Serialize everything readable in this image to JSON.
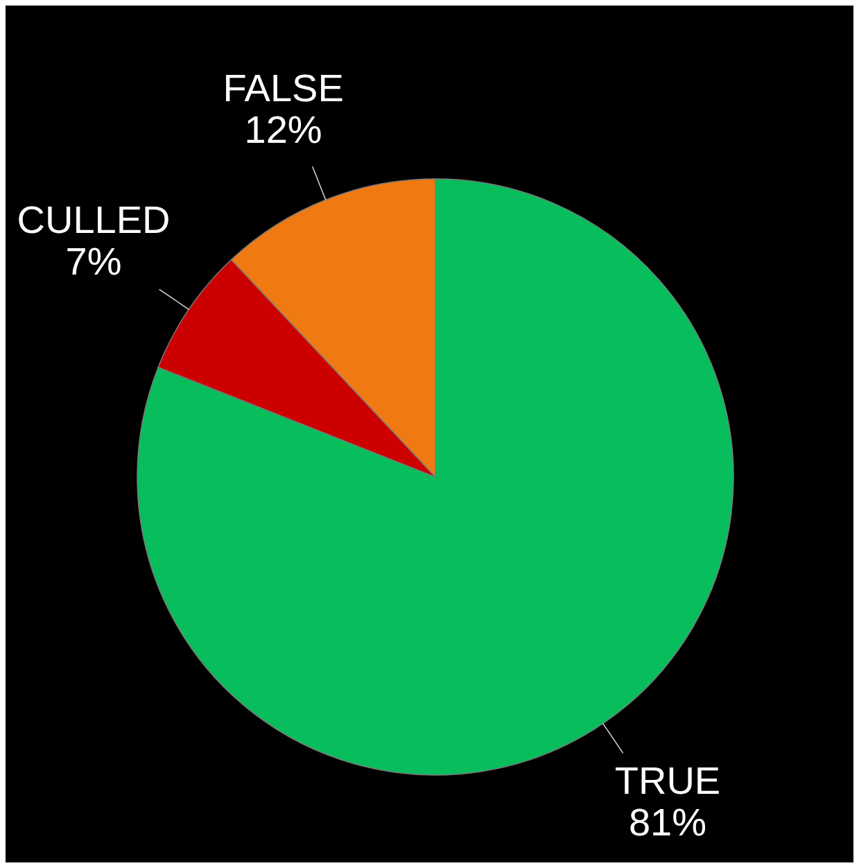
{
  "chart_data": {
    "type": "pie",
    "categories": [
      "TRUE",
      "CULLED",
      "FALSE"
    ],
    "values": [
      81,
      7,
      12
    ],
    "colors": [
      "#08bd5c",
      "#cc0000",
      "#f07a12"
    ],
    "value_labels": [
      "81%",
      "7%",
      "12%"
    ]
  }
}
